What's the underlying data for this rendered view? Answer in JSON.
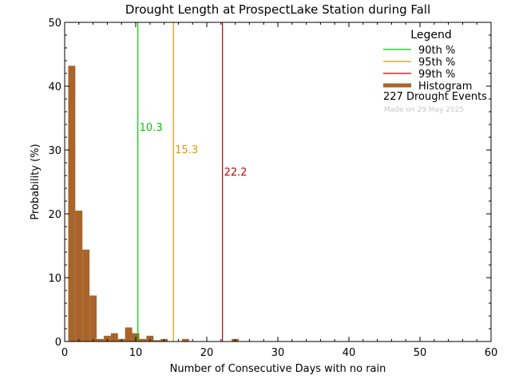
{
  "chart_data": {
    "type": "bar",
    "title": "Drought Length at ProspectLake Station during Fall",
    "xlabel": "Number of Consecutive Days with no rain",
    "ylabel": "Probability (%)",
    "xlim": [
      0,
      60
    ],
    "ylim": [
      0,
      50
    ],
    "x_ticks": [
      0,
      10,
      20,
      30,
      40,
      50,
      60
    ],
    "y_ticks": [
      0,
      10,
      20,
      30,
      40,
      50
    ],
    "grid": false,
    "bin_width": 1,
    "bins": [
      {
        "x": 1,
        "value": 43.2
      },
      {
        "x": 2,
        "value": 20.5
      },
      {
        "x": 3,
        "value": 14.4
      },
      {
        "x": 4,
        "value": 7.2
      },
      {
        "x": 5,
        "value": 0.4
      },
      {
        "x": 6,
        "value": 0.9
      },
      {
        "x": 7,
        "value": 1.3
      },
      {
        "x": 8,
        "value": 0.4
      },
      {
        "x": 9,
        "value": 2.2
      },
      {
        "x": 10,
        "value": 1.3
      },
      {
        "x": 11,
        "value": 0.4
      },
      {
        "x": 12,
        "value": 0.9
      },
      {
        "x": 13,
        "value": 0.2
      },
      {
        "x": 14,
        "value": 0.4
      },
      {
        "x": 17,
        "value": 0.4
      },
      {
        "x": 24,
        "value": 0.4
      }
    ],
    "percentiles": [
      {
        "name": "90th %",
        "value": 10.3,
        "label": "10.3",
        "color": "#00cc00",
        "label_y": 33
      },
      {
        "name": "95th %",
        "value": 15.3,
        "label": "15.3",
        "color": "#e69500",
        "label_y": 29.5
      },
      {
        "name": "99th %",
        "value": 22.2,
        "label": "22.2",
        "color": "#cc0000",
        "label_y": 26
      }
    ],
    "histogram_color": "#a8642a",
    "legend": {
      "title": "Legend",
      "position": "top-right",
      "entries": [
        {
          "label": "90th %",
          "color": "#00cc00",
          "kind": "line"
        },
        {
          "label": "95th %",
          "color": "#e69500",
          "kind": "line"
        },
        {
          "label": "99th %",
          "color": "#cc0000",
          "kind": "line"
        },
        {
          "label": "Histogram",
          "color": "#a8642a",
          "kind": "thick-line"
        }
      ],
      "events_text": "227 Drought Events",
      "made_on": "Made on 29 May 2025"
    }
  }
}
